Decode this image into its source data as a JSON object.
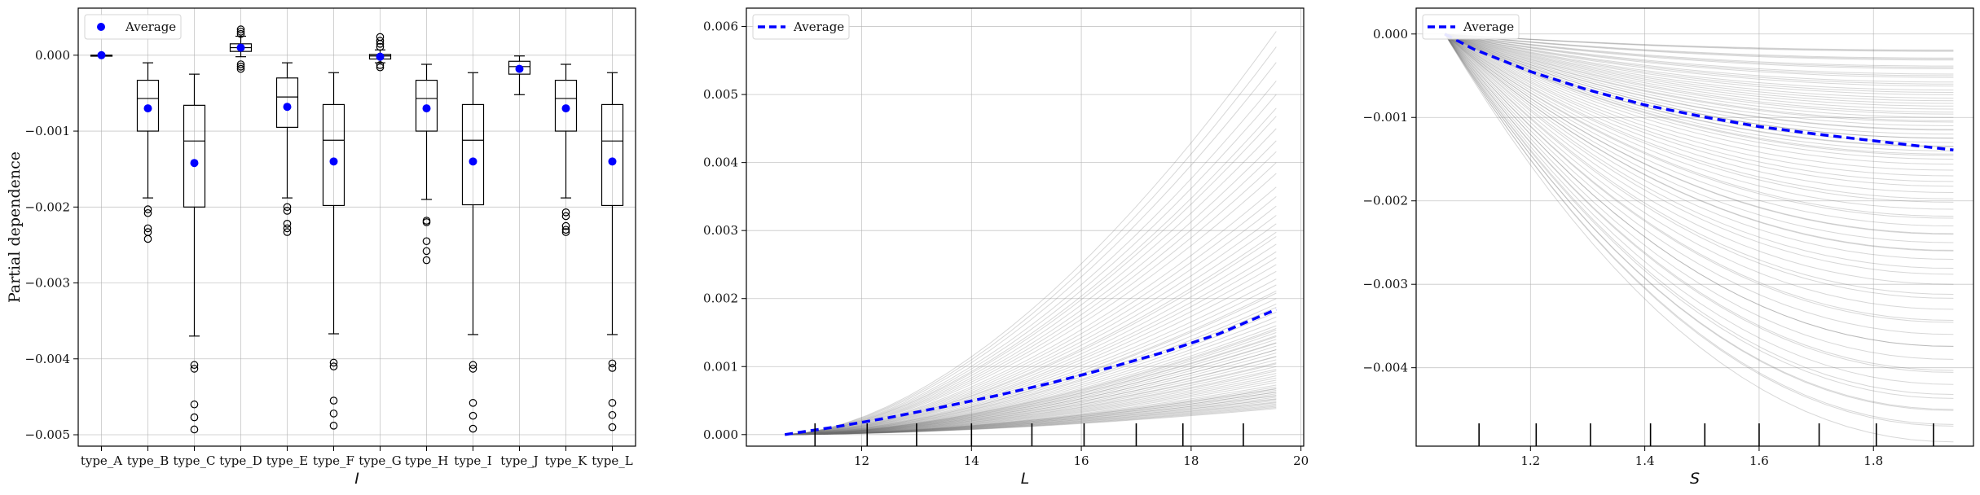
{
  "chart_data": [
    {
      "type": "box",
      "ylabel": "Partial dependence",
      "xlabel": "I",
      "ylim": [
        -0.00515,
        0.00062
      ],
      "yticks": [
        0.0,
        -0.001,
        -0.002,
        -0.003,
        -0.004,
        -0.005
      ],
      "ytick_labels": [
        "0.000",
        "−0.001",
        "−0.002",
        "−0.003",
        "−0.004",
        "−0.005"
      ],
      "legend": {
        "label": "Average",
        "position": "upper-left"
      },
      "grid": true,
      "categories": [
        "type_A",
        "type_B",
        "type_C",
        "type_D",
        "type_E",
        "type_F",
        "type_G",
        "type_H",
        "type_I",
        "type_J",
        "type_K",
        "type_L"
      ],
      "boxes": [
        {
          "category": "type_A",
          "whislo": 0.0,
          "q1": 0.0,
          "med": 0.0,
          "q3": 0.0,
          "whishi": 0.0,
          "mean": 0.0,
          "fliers": []
        },
        {
          "category": "type_B",
          "whislo": -0.00188,
          "q1": -0.001,
          "med": -0.00057,
          "q3": -0.00033,
          "whishi": -0.0001,
          "mean": -0.0007,
          "fliers": [
            -0.00203,
            -0.00208,
            -0.00228,
            -0.00233,
            -0.00242
          ]
        },
        {
          "category": "type_C",
          "whislo": -0.0037,
          "q1": -0.002,
          "med": -0.00113,
          "q3": -0.00066,
          "whishi": -0.00025,
          "mean": -0.00142,
          "fliers": [
            -0.00408,
            -0.00413,
            -0.0046,
            -0.00477,
            -0.00493
          ]
        },
        {
          "category": "type_D",
          "whislo": -2e-05,
          "q1": 5e-05,
          "med": 0.0001,
          "q3": 0.00015,
          "whishi": 0.00025,
          "mean": 0.0001,
          "fliers": [
            -0.00018,
            -0.00015,
            -0.00012,
            0.00028,
            0.00031,
            0.00034
          ]
        },
        {
          "category": "type_E",
          "whislo": -0.00188,
          "q1": -0.00095,
          "med": -0.00055,
          "q3": -0.0003,
          "whishi": -0.0001,
          "mean": -0.00068,
          "fliers": [
            -0.002,
            -0.00205,
            -0.00222,
            -0.00228,
            -0.00233
          ]
        },
        {
          "category": "type_F",
          "whislo": -0.00367,
          "q1": -0.00198,
          "med": -0.00112,
          "q3": -0.00065,
          "whishi": -0.00023,
          "mean": -0.0014,
          "fliers": [
            -0.00405,
            -0.0041,
            -0.00455,
            -0.00472,
            -0.00488
          ]
        },
        {
          "category": "type_G",
          "whislo": -0.0001,
          "q1": -5e-05,
          "med": -1e-05,
          "q3": 1e-05,
          "whishi": 7e-05,
          "mean": -2e-05,
          "fliers": [
            -0.00016,
            -0.00013,
            0.00011,
            0.00015,
            0.00019,
            0.00024
          ]
        },
        {
          "category": "type_H",
          "whislo": -0.0019,
          "q1": -0.001,
          "med": -0.00057,
          "q3": -0.00033,
          "whishi": -0.00012,
          "mean": -0.0007,
          "fliers": [
            -0.00218,
            -0.0022,
            -0.00245,
            -0.00258,
            -0.0027
          ]
        },
        {
          "category": "type_I",
          "whislo": -0.00368,
          "q1": -0.00197,
          "med": -0.00112,
          "q3": -0.00065,
          "whishi": -0.00023,
          "mean": -0.0014,
          "fliers": [
            -0.00408,
            -0.00413,
            -0.00458,
            -0.00475,
            -0.00492
          ]
        },
        {
          "category": "type_J",
          "whislo": -0.00052,
          "q1": -0.00025,
          "med": -0.00015,
          "q3": -8e-05,
          "whishi": -1e-05,
          "mean": -0.00018,
          "fliers": []
        },
        {
          "category": "type_K",
          "whislo": -0.00188,
          "q1": -0.001,
          "med": -0.00057,
          "q3": -0.00033,
          "whishi": -0.00012,
          "mean": -0.0007,
          "fliers": [
            -0.00207,
            -0.00212,
            -0.00225,
            -0.0023,
            -0.00233
          ]
        },
        {
          "category": "type_L",
          "whislo": -0.00368,
          "q1": -0.00198,
          "med": -0.00113,
          "q3": -0.00065,
          "whishi": -0.00023,
          "mean": -0.0014,
          "fliers": [
            -0.00406,
            -0.00412,
            -0.00458,
            -0.00474,
            -0.0049
          ]
        }
      ]
    },
    {
      "type": "line",
      "xlabel": "L",
      "xlim": [
        9.9,
        20.05
      ],
      "ylim": [
        -0.00017,
        0.00627
      ],
      "xticks": [
        12,
        14,
        16,
        18,
        20
      ],
      "yticks": [
        0.0,
        0.001,
        0.002,
        0.003,
        0.004,
        0.005,
        0.006
      ],
      "ytick_labels": [
        "0.000",
        "0.001",
        "0.002",
        "0.003",
        "0.004",
        "0.005",
        "0.006"
      ],
      "legend": {
        "label": "Average",
        "position": "upper-left"
      },
      "grid": true,
      "average": {
        "name": "Average",
        "x": [
          10.6,
          11.5,
          12.5,
          13.5,
          14.5,
          15.5,
          16.5,
          17.5,
          18.5,
          19.55
        ],
        "y": [
          0.0,
          0.00011,
          0.00025,
          0.00041,
          0.00058,
          0.00077,
          0.00098,
          0.00121,
          0.00148,
          0.00184
        ]
      },
      "ice_endpoints": [
        0.0004,
        0.00045,
        0.0005,
        0.00055,
        0.0006,
        0.00065,
        0.0007,
        0.0008,
        0.0009,
        0.001,
        0.0011,
        0.0012,
        0.0013,
        0.0014,
        0.0015,
        0.0016,
        0.0018,
        0.002,
        0.0022,
        0.0025,
        0.0028,
        0.0031,
        0.0035,
        0.004,
        0.0045,
        0.005,
        0.0057
      ],
      "rug": [
        11.15,
        12.1,
        13.0,
        14.0,
        15.1,
        16.05,
        17.0,
        17.85,
        18.95
      ]
    },
    {
      "type": "line",
      "xlabel": "S",
      "xlim": [
        1.0,
        1.975
      ],
      "ylim": [
        -0.00494,
        0.00031
      ],
      "xticks": [
        1.2,
        1.4,
        1.6,
        1.8
      ],
      "yticks": [
        0.0,
        -0.001,
        -0.002,
        -0.003,
        -0.004
      ],
      "ytick_labels": [
        "0.000",
        "−0.001",
        "−0.002",
        "−0.003",
        "−0.004"
      ],
      "legend": {
        "label": "Average",
        "position": "upper-left"
      },
      "grid": true,
      "average": {
        "name": "Average",
        "x": [
          1.05,
          1.1,
          1.2,
          1.3,
          1.4,
          1.5,
          1.6,
          1.7,
          1.8,
          1.94
        ],
        "y": [
          0.0,
          -0.00018,
          -0.00045,
          -0.00067,
          -0.00085,
          -0.00099,
          -0.00111,
          -0.0012,
          -0.00128,
          -0.00139
        ]
      },
      "ice_endpoints": [
        -0.0002,
        -0.0003,
        -0.0004,
        -0.0005,
        -0.0006,
        -0.0007,
        -0.0008,
        -0.0009,
        -0.001,
        -0.0011,
        -0.0012,
        -0.0013,
        -0.0014,
        -0.0015,
        -0.0017,
        -0.0019,
        -0.0021,
        -0.0023,
        -0.0025,
        -0.0027,
        -0.003,
        -0.0033,
        -0.0036,
        -0.0039,
        -0.0042,
        -0.0045,
        -0.0047
      ],
      "rug": [
        1.11,
        1.21,
        1.305,
        1.41,
        1.505,
        1.6,
        1.705,
        1.805,
        1.905
      ]
    }
  ]
}
